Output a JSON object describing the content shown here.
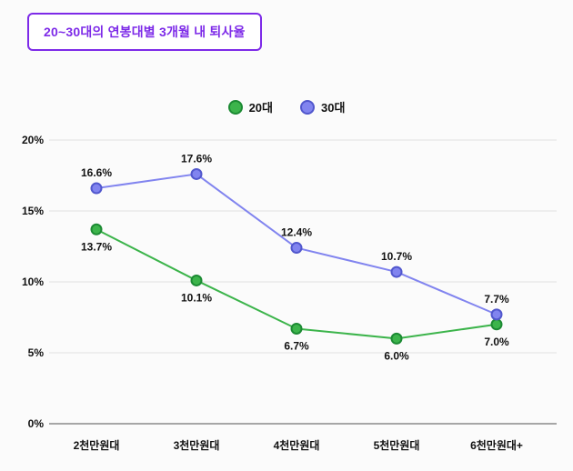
{
  "header": {
    "title": "20~30대의 연봉대별 3개월 내 퇴사율"
  },
  "colors": {
    "title_accent": "#7d2ae8",
    "grid": "#e1e1e1",
    "axis": "#8a8a8a",
    "text": "#111111",
    "background": "#fbfbfb"
  },
  "chart_data": {
    "type": "line",
    "title": "20~30대의 연봉대별 3개월 내 퇴사율",
    "categories": [
      "2천만원대",
      "3천만원대",
      "4천만원대",
      "5천만원대",
      "6천만원대+"
    ],
    "series": [
      {
        "name": "20대",
        "values": [
          13.7,
          10.1,
          6.7,
          6.0,
          7.0
        ],
        "color": "#3cb44b",
        "point_stroke": "#1c8a33",
        "label_position": "below"
      },
      {
        "name": "30대",
        "values": [
          16.6,
          17.6,
          12.4,
          10.7,
          7.7
        ],
        "color": "#8184ef",
        "point_stroke": "#5157cd",
        "label_position": "above"
      }
    ],
    "xlabel": "",
    "ylabel": "",
    "ylim": [
      0,
      20
    ],
    "yticks": [
      0,
      5,
      10,
      15,
      20
    ],
    "ytick_format": "percent",
    "value_label_format": "percent_one_decimal",
    "grid": true,
    "legend_position": "top-center"
  }
}
